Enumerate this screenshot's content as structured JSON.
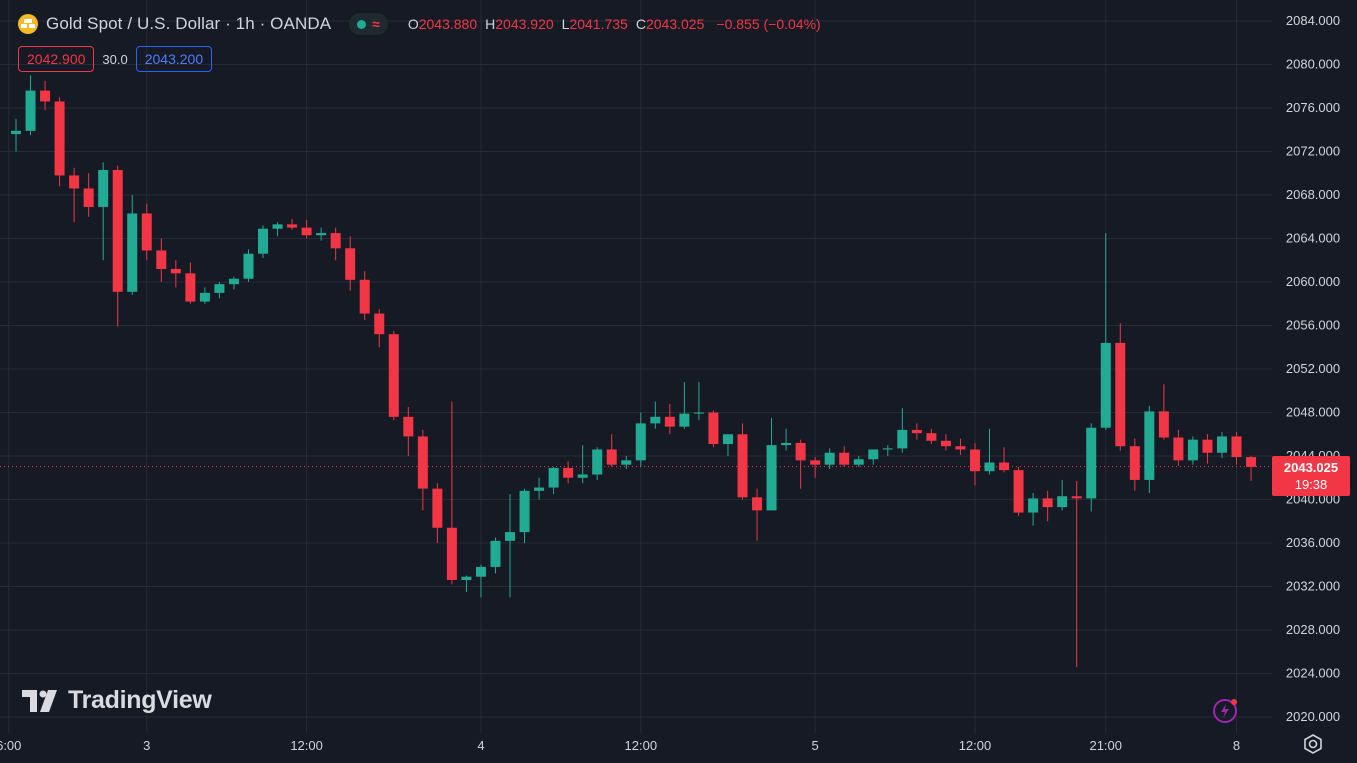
{
  "header": {
    "title": "Gold Spot / U.S. Dollar · 1h · OANDA",
    "ohlc": [
      {
        "key": "O",
        "value": "2043.880"
      },
      {
        "key": "H",
        "value": "2043.920"
      },
      {
        "key": "L",
        "value": "2041.735"
      },
      {
        "key": "C",
        "value": "2043.025"
      }
    ],
    "change": "−0.855 (−0.04%)",
    "status_dot_color": "#22ab94"
  },
  "trade": {
    "sell": "2042.900",
    "spread": "30.0",
    "buy": "2043.200"
  },
  "logo_text": "TradingView",
  "last_price": {
    "price": "2043.025",
    "countdown": "19:38"
  },
  "colors": {
    "background": "#161a25",
    "up": "#22ab94",
    "down": "#f23645",
    "grid": "#262a35",
    "axis_text": "#d1d4dc"
  },
  "chart_data": {
    "type": "candlestick",
    "ylim": [
      2020,
      2084
    ],
    "y_ticks": [
      2084,
      2080,
      2076,
      2072,
      2068,
      2064,
      2060,
      2056,
      2052,
      2048,
      2044,
      2040,
      2036,
      2032,
      2028,
      2024,
      2020
    ],
    "x_tick_labels": [
      {
        "bar": -0.5,
        "label": "6:00"
      },
      {
        "bar": 9,
        "label": "3"
      },
      {
        "bar": 20,
        "label": "12:00"
      },
      {
        "bar": 32,
        "label": "4"
      },
      {
        "bar": 43,
        "label": "12:00"
      },
      {
        "bar": 55,
        "label": "5"
      },
      {
        "bar": 66,
        "label": "12:00"
      },
      {
        "bar": 75,
        "label": "21:00"
      },
      {
        "bar": 84,
        "label": "8"
      }
    ],
    "last_price": 2043.025,
    "candles": [
      [
        2073.6,
        2075.0,
        2072.0,
        2073.9
      ],
      [
        2073.9,
        2079.0,
        2073.5,
        2077.6
      ],
      [
        2077.6,
        2078.5,
        2075.8,
        2076.6
      ],
      [
        2076.6,
        2077.0,
        2068.8,
        2069.8
      ],
      [
        2069.8,
        2070.5,
        2065.5,
        2068.6
      ],
      [
        2068.6,
        2070.0,
        2066.0,
        2066.9
      ],
      [
        2066.9,
        2071.0,
        2062.0,
        2070.3
      ],
      [
        2070.3,
        2070.7,
        2055.9,
        2059.1
      ],
      [
        2059.1,
        2068.0,
        2058.8,
        2066.3
      ],
      [
        2066.3,
        2067.2,
        2062.0,
        2062.9
      ],
      [
        2062.9,
        2064.0,
        2060.0,
        2061.2
      ],
      [
        2061.2,
        2062.0,
        2059.5,
        2060.8
      ],
      [
        2060.8,
        2061.8,
        2058.0,
        2058.2
      ],
      [
        2058.2,
        2059.5,
        2058.0,
        2059.0
      ],
      [
        2059.0,
        2060.0,
        2058.5,
        2059.8
      ],
      [
        2059.8,
        2060.5,
        2059.3,
        2060.3
      ],
      [
        2060.3,
        2063.0,
        2060.0,
        2062.6
      ],
      [
        2062.6,
        2065.2,
        2062.2,
        2064.9
      ],
      [
        2064.9,
        2065.5,
        2064.2,
        2065.3
      ],
      [
        2065.3,
        2065.8,
        2064.8,
        2065.0
      ],
      [
        2065.0,
        2065.7,
        2064.0,
        2064.3
      ],
      [
        2064.3,
        2065.0,
        2063.8,
        2064.5
      ],
      [
        2064.5,
        2065.0,
        2062.0,
        2063.1
      ],
      [
        2063.1,
        2064.2,
        2059.2,
        2060.2
      ],
      [
        2060.2,
        2061.0,
        2056.5,
        2057.1
      ],
      [
        2057.1,
        2057.5,
        2054.0,
        2055.2
      ],
      [
        2055.2,
        2055.5,
        2047.3,
        2047.6
      ],
      [
        2047.6,
        2048.5,
        2044.0,
        2045.8
      ],
      [
        2045.8,
        2046.4,
        2039.0,
        2041.0
      ],
      [
        2041.0,
        2041.5,
        2036.0,
        2037.4
      ],
      [
        2037.4,
        2049.0,
        2032.2,
        2032.6
      ],
      [
        2032.6,
        2033.0,
        2031.5,
        2032.9
      ],
      [
        2032.9,
        2034.0,
        2031.0,
        2033.8
      ],
      [
        2033.8,
        2036.5,
        2033.2,
        2036.2
      ],
      [
        2036.2,
        2040.5,
        2031.0,
        2037.0
      ],
      [
        2037.0,
        2041.0,
        2036.0,
        2040.8
      ],
      [
        2040.8,
        2042.0,
        2040.0,
        2041.1
      ],
      [
        2041.1,
        2043.0,
        2040.5,
        2042.9
      ],
      [
        2042.9,
        2043.5,
        2041.5,
        2042.0
      ],
      [
        2042.0,
        2045.0,
        2041.5,
        2042.3
      ],
      [
        2042.3,
        2044.8,
        2041.8,
        2044.6
      ],
      [
        2044.6,
        2046.0,
        2043.0,
        2043.2
      ],
      [
        2043.2,
        2044.0,
        2042.8,
        2043.6
      ],
      [
        2043.6,
        2048.0,
        2043.0,
        2047.0
      ],
      [
        2047.0,
        2049.0,
        2046.5,
        2047.6
      ],
      [
        2047.6,
        2048.8,
        2046.0,
        2046.7
      ],
      [
        2046.7,
        2050.8,
        2046.5,
        2047.9
      ],
      [
        2047.9,
        2050.8,
        2047.3,
        2048.0
      ],
      [
        2048.0,
        2048.2,
        2044.8,
        2045.1
      ],
      [
        2045.1,
        2046.0,
        2044.0,
        2046.0
      ],
      [
        2046.0,
        2047.0,
        2040.0,
        2040.2
      ],
      [
        2040.2,
        2041.0,
        2036.2,
        2039.0
      ],
      [
        2039.0,
        2047.5,
        2039.0,
        2045.0
      ],
      [
        2045.0,
        2046.5,
        2044.5,
        2045.2
      ],
      [
        2045.2,
        2045.5,
        2041.0,
        2043.6
      ],
      [
        2043.6,
        2043.9,
        2042.0,
        2043.2
      ],
      [
        2043.2,
        2044.7,
        2042.8,
        2044.3
      ],
      [
        2044.3,
        2044.9,
        2043.0,
        2043.2
      ],
      [
        2043.2,
        2044.0,
        2043.0,
        2043.7
      ],
      [
        2043.7,
        2044.4,
        2043.2,
        2044.6
      ],
      [
        2044.6,
        2045.0,
        2044.0,
        2044.7
      ],
      [
        2044.7,
        2048.4,
        2044.3,
        2046.4
      ],
      [
        2046.4,
        2047.0,
        2045.5,
        2046.1
      ],
      [
        2046.1,
        2046.5,
        2045.1,
        2045.4
      ],
      [
        2045.4,
        2046.0,
        2044.5,
        2044.9
      ],
      [
        2044.9,
        2045.6,
        2044.1,
        2044.6
      ],
      [
        2044.6,
        2045.2,
        2041.3,
        2042.6
      ],
      [
        2042.6,
        2046.5,
        2042.3,
        2043.4
      ],
      [
        2043.4,
        2044.8,
        2042.5,
        2042.7
      ],
      [
        2042.7,
        2043.0,
        2038.5,
        2038.8
      ],
      [
        2038.8,
        2040.6,
        2037.6,
        2040.1
      ],
      [
        2040.1,
        2040.8,
        2038.0,
        2039.3
      ],
      [
        2039.3,
        2041.8,
        2039.0,
        2040.3
      ],
      [
        2040.3,
        2041.7,
        2024.6,
        2040.1
      ],
      [
        2040.1,
        2047.0,
        2038.9,
        2046.6
      ],
      [
        2046.6,
        2064.5,
        2046.4,
        2054.4
      ],
      [
        2054.4,
        2056.2,
        2044.5,
        2044.9
      ],
      [
        2044.9,
        2045.6,
        2040.8,
        2041.8
      ],
      [
        2041.8,
        2048.6,
        2040.6,
        2048.1
      ],
      [
        2048.1,
        2050.6,
        2045.5,
        2045.7
      ],
      [
        2045.7,
        2046.4,
        2043.1,
        2043.6
      ],
      [
        2043.6,
        2045.8,
        2043.2,
        2045.5
      ],
      [
        2045.5,
        2046.0,
        2043.3,
        2044.3
      ],
      [
        2044.3,
        2046.2,
        2043.8,
        2045.8
      ],
      [
        2045.8,
        2046.2,
        2043.2,
        2043.9
      ],
      [
        2043.9,
        2044.0,
        2041.7,
        2043.0
      ]
    ]
  }
}
